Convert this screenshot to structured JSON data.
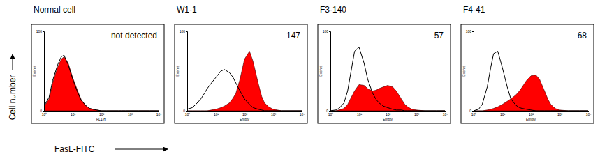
{
  "figure": {
    "y_label": "Cell number",
    "x_label": "FasL-FITC"
  },
  "chart_data": [
    {
      "type": "line",
      "title": "Normal cell",
      "annotation": "not detected",
      "x_label": "FL1-H",
      "y_label": "Events",
      "log": "x",
      "xlim": [
        1,
        10000
      ],
      "xticks": [
        {
          "value": 1,
          "label": "10⁰"
        },
        {
          "value": 10,
          "label": "10¹"
        },
        {
          "value": 100,
          "label": "10²"
        },
        {
          "value": 1000,
          "label": "10³"
        },
        {
          "value": 10000,
          "label": "10⁴"
        }
      ],
      "ylim": [
        0,
        100
      ],
      "yticks": [
        0,
        100
      ],
      "x": [
        1,
        1.5,
        2,
        3,
        4,
        5,
        7,
        10,
        15,
        20,
        30,
        40,
        50,
        70,
        100,
        150,
        200,
        300,
        400,
        500,
        700,
        1000,
        2000,
        5000,
        10000
      ],
      "series": [
        {
          "type": "area",
          "color": "#ff0000",
          "values": [
            5,
            15,
            35,
            55,
            65,
            68,
            60,
            42,
            25,
            14,
            6,
            3,
            2,
            1,
            0,
            0,
            0,
            0,
            0,
            0,
            0,
            0,
            0,
            0,
            0
          ]
        },
        {
          "type": "line",
          "color": "#000000",
          "values": [
            6,
            17,
            38,
            58,
            68,
            70,
            58,
            40,
            23,
            13,
            6,
            3,
            2,
            1,
            0,
            0,
            0,
            0,
            0,
            0,
            0,
            0,
            0,
            0,
            0
          ]
        }
      ]
    },
    {
      "type": "line",
      "title": "W1-1",
      "annotation": "147",
      "x_label": "Empty",
      "y_label": "Events",
      "log": "x",
      "xlim": [
        1,
        10000
      ],
      "xticks": [
        {
          "value": 1,
          "label": "10⁰"
        },
        {
          "value": 10,
          "label": "10¹"
        },
        {
          "value": 100,
          "label": "10²"
        },
        {
          "value": 1000,
          "label": "10³"
        },
        {
          "value": 10000,
          "label": "10⁴"
        }
      ],
      "ylim": [
        0,
        100
      ],
      "yticks": [
        0,
        100
      ],
      "x": [
        1,
        1.5,
        2,
        3,
        4,
        5,
        7,
        10,
        15,
        20,
        30,
        40,
        50,
        70,
        100,
        150,
        200,
        300,
        400,
        500,
        700,
        1000,
        2000,
        5000,
        10000
      ],
      "series": [
        {
          "type": "area",
          "color": "#ff0000",
          "values": [
            0,
            0,
            0,
            0,
            0,
            0,
            1,
            2,
            4,
            6,
            10,
            16,
            22,
            40,
            65,
            75,
            62,
            35,
            18,
            10,
            5,
            2,
            0,
            0,
            0
          ]
        },
        {
          "type": "line",
          "color": "#000000",
          "values": [
            2,
            4,
            8,
            15,
            22,
            28,
            35,
            42,
            50,
            52,
            48,
            42,
            35,
            25,
            15,
            8,
            4,
            2,
            1,
            0,
            0,
            0,
            0,
            0,
            0
          ]
        }
      ]
    },
    {
      "type": "line",
      "title": "F3-140",
      "annotation": "57",
      "x_label": "Empty",
      "y_label": "Events",
      "log": "x",
      "xlim": [
        1,
        10000
      ],
      "xticks": [
        {
          "value": 1,
          "label": "10⁰"
        },
        {
          "value": 10,
          "label": "10¹"
        },
        {
          "value": 100,
          "label": "10²"
        },
        {
          "value": 1000,
          "label": "10³"
        },
        {
          "value": 10000,
          "label": "10⁴"
        }
      ],
      "ylim": [
        0,
        100
      ],
      "yticks": [
        0,
        100
      ],
      "x": [
        1,
        1.5,
        2,
        3,
        4,
        5,
        7,
        10,
        15,
        20,
        30,
        40,
        50,
        70,
        100,
        150,
        200,
        300,
        400,
        500,
        700,
        1000,
        2000,
        5000,
        10000
      ],
      "series": [
        {
          "type": "area",
          "color": "#ff0000",
          "values": [
            0,
            0,
            1,
            3,
            8,
            15,
            25,
            33,
            32,
            28,
            25,
            26,
            28,
            30,
            32,
            30,
            25,
            15,
            8,
            5,
            2,
            1,
            0,
            0,
            0
          ]
        },
        {
          "type": "line",
          "color": "#000000",
          "values": [
            0,
            1,
            3,
            10,
            25,
            45,
            75,
            80,
            60,
            40,
            22,
            14,
            10,
            6,
            4,
            2,
            1,
            1,
            0,
            0,
            0,
            0,
            0,
            0,
            0
          ]
        }
      ]
    },
    {
      "type": "line",
      "title": "F4-41",
      "annotation": "68",
      "x_label": "Empty",
      "y_label": "Events",
      "log": "x",
      "xlim": [
        1,
        10000
      ],
      "xticks": [
        {
          "value": 1,
          "label": "10⁰"
        },
        {
          "value": 10,
          "label": "10¹"
        },
        {
          "value": 100,
          "label": "10²"
        },
        {
          "value": 1000,
          "label": "10³"
        },
        {
          "value": 10000,
          "label": "10⁴"
        }
      ],
      "ylim": [
        0,
        100
      ],
      "yticks": [
        0,
        100
      ],
      "x": [
        1,
        1.5,
        2,
        3,
        4,
        5,
        7,
        10,
        15,
        20,
        30,
        40,
        50,
        70,
        100,
        150,
        200,
        300,
        400,
        500,
        700,
        1000,
        2000,
        5000,
        10000
      ],
      "series": [
        {
          "type": "area",
          "color": "#ff0000",
          "values": [
            0,
            0,
            0,
            1,
            2,
            3,
            5,
            8,
            12,
            15,
            20,
            25,
            30,
            38,
            44,
            45,
            40,
            25,
            14,
            8,
            3,
            1,
            0,
            0,
            0
          ]
        },
        {
          "type": "line",
          "color": "#000000",
          "values": [
            0,
            2,
            8,
            30,
            55,
            72,
            75,
            55,
            30,
            15,
            7,
            4,
            3,
            2,
            1,
            0,
            0,
            0,
            0,
            0,
            0,
            0,
            0,
            0,
            0
          ]
        }
      ]
    }
  ]
}
